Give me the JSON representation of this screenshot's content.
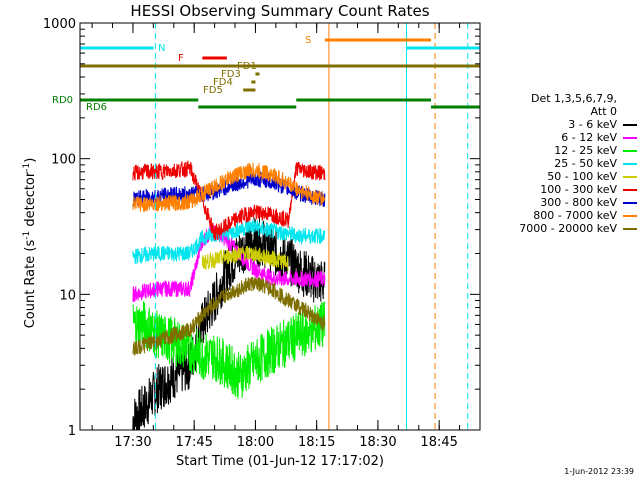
{
  "title": "HESSI Observing Summary Count Rates",
  "xlabel": "Start Time (01-Jun-12 17:17:02)",
  "ylabel_main": "Count Rate (s",
  "ylabel_sup1": "-1",
  "ylabel_mid": " detector",
  "ylabel_sup2": "-1",
  "ylabel_end": ")",
  "stamp": "1-Jun-2012 23:39",
  "legend": {
    "header1": "Det 1,3,5,6,7,9,",
    "header2": "Att 0",
    "entries": [
      {
        "label": "3 - 6 keV",
        "color": "#000000"
      },
      {
        "label": "6 - 12 keV",
        "color": "#ff00ff"
      },
      {
        "label": "12 - 25 keV",
        "color": "#00ee00"
      },
      {
        "label": "25 - 50 keV",
        "color": "#00e5ee"
      },
      {
        "label": "50 - 100 keV",
        "color": "#cccc00"
      },
      {
        "label": "100 - 300 keV",
        "color": "#ee0000"
      },
      {
        "label": "300 - 800 keV",
        "color": "#0000cc"
      },
      {
        "label": "800 - 7000 keV",
        "color": "#ff8000"
      },
      {
        "label": "7000 - 20000 keV",
        "color": "#7f6f00"
      }
    ]
  },
  "chart_data": {
    "type": "line",
    "title": "HESSI Observing Summary Count Rates",
    "xlabel": "Start Time (01-Jun-12 17:17:02)",
    "ylabel": "Count Rate (s^-1 detector^-1)",
    "xlim": [
      "17:17:02",
      "18:55:00"
    ],
    "yscale": "log",
    "ylim": [
      1,
      1000
    ],
    "xticks": [
      "17:30",
      "17:45",
      "18:00",
      "18:15",
      "18:30",
      "18:45"
    ],
    "yticks": [
      "1",
      "10",
      "100",
      "1000"
    ],
    "flags": [
      {
        "label": "N",
        "color": "#00e5ee",
        "segments": [
          [
            "17:17:02",
            "17:35"
          ],
          [
            "18:37",
            "18:55"
          ]
        ]
      },
      {
        "label": "S",
        "color": "#ff8000",
        "segments": [
          [
            "18:17",
            "18:43"
          ]
        ]
      },
      {
        "label": "F",
        "color": "#ee0000",
        "segments": [
          [
            "17:47",
            "17:53"
          ]
        ]
      },
      {
        "label": "FD1",
        "color": "#7f6f00",
        "segments": [
          [
            "17:17:02",
            "18:55"
          ]
        ]
      },
      {
        "label": "FD3",
        "color": "#7f6f00",
        "segments": [
          [
            "18:00",
            "18:01"
          ]
        ]
      },
      {
        "label": "FD4",
        "color": "#7f6f00",
        "segments": [
          [
            "17:59",
            "18:00"
          ]
        ]
      },
      {
        "label": "FD5",
        "color": "#7f6f00",
        "segments": [
          [
            "17:57",
            "18:00"
          ]
        ]
      },
      {
        "label": "RD0",
        "color": "#007f00",
        "segments": [
          [
            "17:17:02",
            "17:46"
          ],
          [
            "18:10",
            "18:43"
          ]
        ]
      },
      {
        "label": "RD6",
        "color": "#007f00",
        "segments": [
          [
            "17:46",
            "18:10"
          ],
          [
            "18:43",
            "18:55"
          ]
        ]
      }
    ],
    "vlines": [
      {
        "time": "17:17:02",
        "color": "#00e5ee",
        "style": "solid"
      },
      {
        "time": "17:35:30",
        "color": "#00e5ee",
        "style": "dashed"
      },
      {
        "time": "18:18",
        "color": "#ff8000",
        "style": "solid"
      },
      {
        "time": "18:37",
        "color": "#00e5ee",
        "style": "solid"
      },
      {
        "time": "18:44",
        "color": "#ff8000",
        "style": "dashed"
      },
      {
        "time": "18:52",
        "color": "#00e5ee",
        "style": "dashed"
      }
    ],
    "data_start": "17:30",
    "data_end": "18:17",
    "series": [
      {
        "name": "3 - 6 keV",
        "color": "#000000",
        "points": [
          [
            "17:30",
            1.2
          ],
          [
            "17:33",
            1.5
          ],
          [
            "17:36",
            2.0
          ],
          [
            "17:40",
            2.5
          ],
          [
            "17:44",
            3.0
          ],
          [
            "17:47",
            6
          ],
          [
            "17:50",
            9
          ],
          [
            "17:53",
            15
          ],
          [
            "17:56",
            20
          ],
          [
            "17:59",
            25
          ],
          [
            "18:02",
            24
          ],
          [
            "18:05",
            20
          ],
          [
            "18:08",
            18
          ],
          [
            "18:11",
            15
          ],
          [
            "18:14",
            13
          ],
          [
            "18:17",
            12
          ]
        ]
      },
      {
        "name": "6 - 12 keV",
        "color": "#ff00ff",
        "points": [
          [
            "17:30",
            10
          ],
          [
            "17:33",
            10.5
          ],
          [
            "17:36",
            11
          ],
          [
            "17:40",
            11
          ],
          [
            "17:44",
            11
          ],
          [
            "17:47",
            25
          ],
          [
            "17:50",
            30
          ],
          [
            "17:53",
            25
          ],
          [
            "17:56",
            20
          ],
          [
            "17:59",
            16
          ],
          [
            "18:02",
            14
          ],
          [
            "18:05",
            13
          ],
          [
            "18:08",
            13
          ],
          [
            "18:11",
            13
          ],
          [
            "18:14",
            13
          ],
          [
            "18:17",
            13
          ]
        ]
      },
      {
        "name": "12 - 25 keV",
        "color": "#00ee00",
        "points": [
          [
            "17:30",
            6
          ],
          [
            "17:33",
            6
          ],
          [
            "17:36",
            5
          ],
          [
            "17:40",
            4.5
          ],
          [
            "17:44",
            4
          ],
          [
            "17:47",
            3.5
          ],
          [
            "17:50",
            3.5
          ],
          [
            "17:53",
            3
          ],
          [
            "17:56",
            2.5
          ],
          [
            "17:59",
            3
          ],
          [
            "18:02",
            3.5
          ],
          [
            "18:05",
            4
          ],
          [
            "18:08",
            4.5
          ],
          [
            "18:11",
            5
          ],
          [
            "18:14",
            5.5
          ],
          [
            "18:17",
            6
          ]
        ]
      },
      {
        "name": "25 - 50 keV",
        "color": "#00e5ee",
        "points": [
          [
            "17:30",
            19
          ],
          [
            "17:33",
            19.5
          ],
          [
            "17:36",
            20
          ],
          [
            "17:40",
            20
          ],
          [
            "17:44",
            20
          ],
          [
            "17:47",
            26
          ],
          [
            "17:50",
            28
          ],
          [
            "17:53",
            28
          ],
          [
            "17:56",
            30
          ],
          [
            "17:59",
            32
          ],
          [
            "18:02",
            30
          ],
          [
            "18:05",
            29
          ],
          [
            "18:08",
            28
          ],
          [
            "18:11",
            27
          ],
          [
            "18:14",
            27
          ],
          [
            "18:17",
            27
          ]
        ]
      },
      {
        "name": "50 - 100 keV",
        "color": "#cccc00",
        "points": [
          [
            "17:47",
            17
          ],
          [
            "17:50",
            18
          ],
          [
            "17:53",
            19
          ],
          [
            "17:56",
            20
          ],
          [
            "17:59",
            20
          ],
          [
            "18:02",
            19
          ],
          [
            "18:05",
            18
          ],
          [
            "18:08",
            17
          ]
        ]
      },
      {
        "name": "100 - 300 keV",
        "color": "#ee0000",
        "points": [
          [
            "17:30",
            78
          ],
          [
            "17:33",
            80
          ],
          [
            "17:36",
            80
          ],
          [
            "17:40",
            82
          ],
          [
            "17:44",
            85
          ],
          [
            "17:46",
            60
          ],
          [
            "17:50",
            28
          ],
          [
            "17:53",
            32
          ],
          [
            "17:56",
            37
          ],
          [
            "17:59",
            40
          ],
          [
            "18:02",
            40
          ],
          [
            "18:05",
            38
          ],
          [
            "18:08",
            35
          ],
          [
            "18:10",
            85
          ],
          [
            "18:14",
            80
          ],
          [
            "18:17",
            78
          ]
        ]
      },
      {
        "name": "300 - 800 keV",
        "color": "#0000cc",
        "points": [
          [
            "17:30",
            50
          ],
          [
            "17:33",
            52
          ],
          [
            "17:36",
            53
          ],
          [
            "17:40",
            54
          ],
          [
            "17:44",
            55
          ],
          [
            "17:47",
            55
          ],
          [
            "17:50",
            57
          ],
          [
            "17:53",
            62
          ],
          [
            "17:56",
            66
          ],
          [
            "17:59",
            70
          ],
          [
            "18:02",
            70
          ],
          [
            "18:05",
            66
          ],
          [
            "18:08",
            60
          ],
          [
            "18:11",
            55
          ],
          [
            "18:14",
            52
          ],
          [
            "18:17",
            50
          ]
        ]
      },
      {
        "name": "800 - 7000 keV",
        "color": "#ff8000",
        "points": [
          [
            "17:30",
            46
          ],
          [
            "17:33",
            46
          ],
          [
            "17:36",
            47
          ],
          [
            "17:40",
            47
          ],
          [
            "17:44",
            48
          ],
          [
            "17:47",
            55
          ],
          [
            "17:50",
            62
          ],
          [
            "17:53",
            70
          ],
          [
            "17:56",
            78
          ],
          [
            "17:59",
            82
          ],
          [
            "18:02",
            80
          ],
          [
            "18:05",
            74
          ],
          [
            "18:08",
            66
          ],
          [
            "18:11",
            58
          ],
          [
            "18:14",
            53
          ],
          [
            "18:17",
            50
          ]
        ]
      },
      {
        "name": "7000 - 20000 keV",
        "color": "#7f6f00",
        "points": [
          [
            "17:30",
            4
          ],
          [
            "17:33",
            4.2
          ],
          [
            "17:36",
            4.5
          ],
          [
            "17:40",
            5
          ],
          [
            "17:44",
            5.5
          ],
          [
            "17:47",
            7
          ],
          [
            "17:50",
            8.5
          ],
          [
            "17:53",
            10
          ],
          [
            "17:56",
            11
          ],
          [
            "17:59",
            12
          ],
          [
            "18:02",
            11.5
          ],
          [
            "18:05",
            10.5
          ],
          [
            "18:08",
            9
          ],
          [
            "18:11",
            8
          ],
          [
            "18:14",
            7
          ],
          [
            "18:17",
            6
          ]
        ]
      }
    ]
  }
}
